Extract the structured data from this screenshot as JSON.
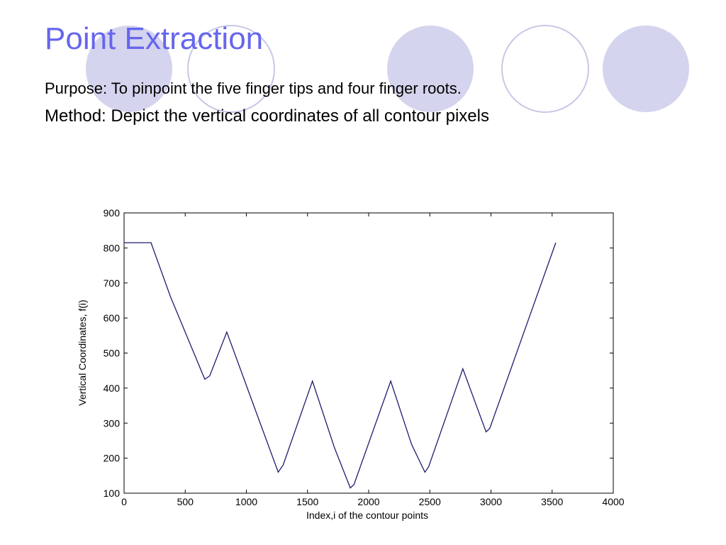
{
  "slide": {
    "title": "Point Extraction",
    "purpose": "Purpose: To pinpoint the five finger tips and four finger roots.",
    "method": "Method: Depict the vertical coordinates of all contour pixels"
  },
  "colors": {
    "title": "#6666ee",
    "circle_fill": "#d4d4ee",
    "circle_stroke": "#c8c8e8",
    "line": "#1c1c6e"
  },
  "chart_data": {
    "type": "line",
    "title": "",
    "xlabel": "Index,i of the contour points",
    "ylabel": "Vertical Coordinates, f(i)",
    "xlim": [
      0,
      4000
    ],
    "ylim": [
      100,
      900
    ],
    "xticks": [
      0,
      500,
      1000,
      1500,
      2000,
      2500,
      3000,
      3500,
      4000
    ],
    "yticks": [
      100,
      200,
      300,
      400,
      500,
      600,
      700,
      800,
      900
    ],
    "grid": false,
    "legend": "none",
    "series": [
      {
        "x": [
          0,
          220,
          380,
          660,
          700,
          840,
          1050,
          1260,
          1300,
          1540,
          1720,
          1850,
          1880,
          2180,
          2350,
          2460,
          2490,
          2770,
          2960,
          2990,
          3250,
          3530
        ],
        "values": [
          815,
          815,
          660,
          425,
          435,
          560,
          360,
          160,
          180,
          420,
          230,
          115,
          125,
          420,
          240,
          160,
          175,
          455,
          275,
          285,
          540,
          815
        ]
      }
    ]
  }
}
